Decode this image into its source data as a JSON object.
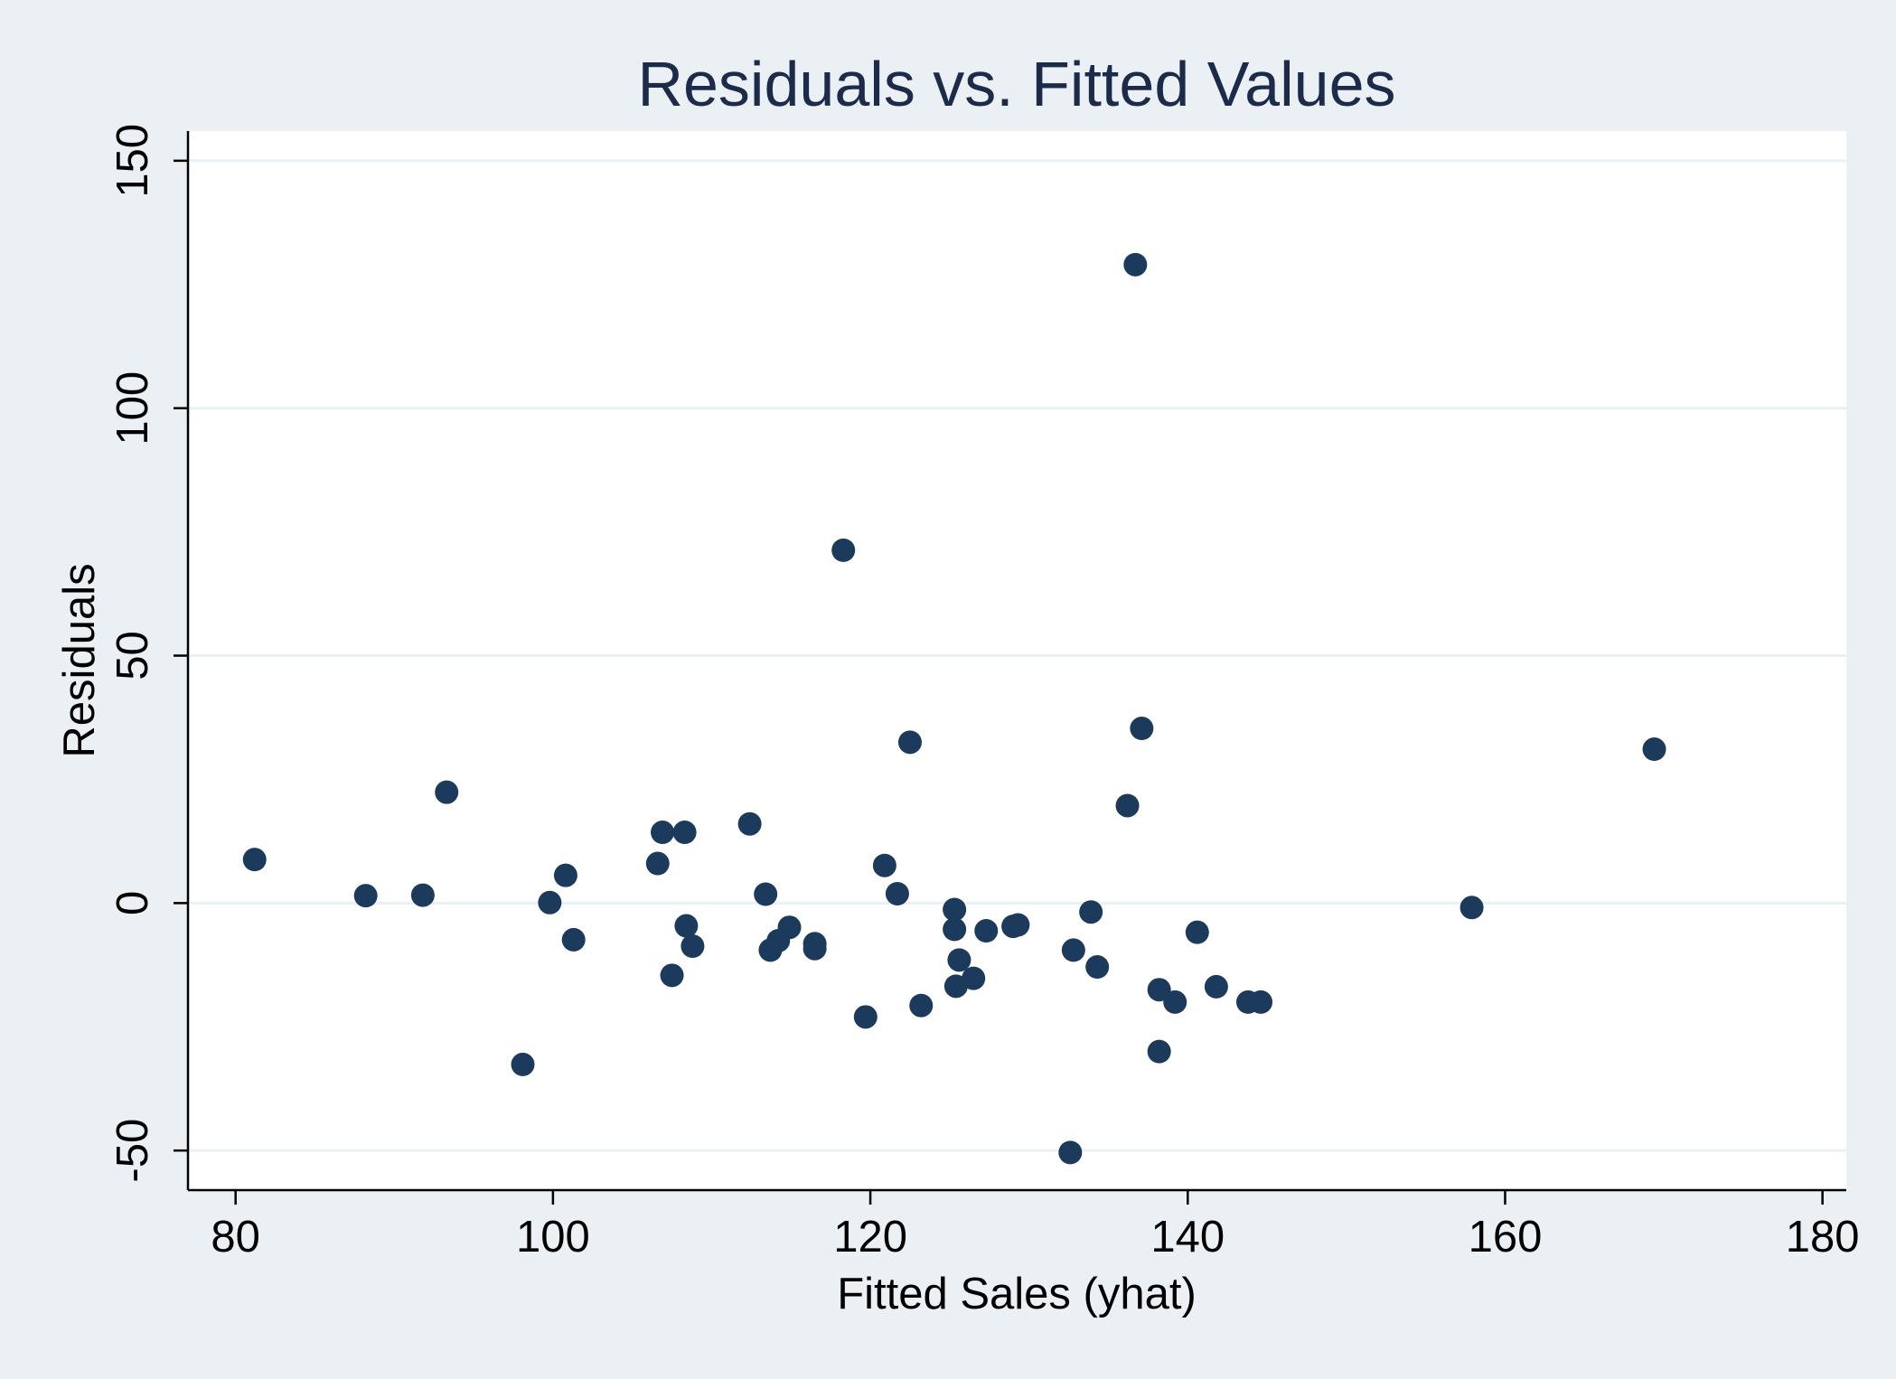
{
  "chart_data": {
    "type": "scatter",
    "title": "Residuals vs. Fitted Values",
    "xlabel": "Fitted Sales (yhat)",
    "ylabel": "Residuals",
    "xlim": [
      77,
      181.5
    ],
    "ylim": [
      -58,
      156
    ],
    "xticks": [
      80,
      100,
      120,
      140,
      160,
      180
    ],
    "yticks": [
      -50,
      0,
      50,
      100,
      150
    ],
    "grid": "horizontal",
    "colors": {
      "page_background": "#eaf0f3",
      "plot_background": "#ffffff",
      "marker": "#1b3a5c",
      "title": "#1c2b4a",
      "gridline": "#eaf0f3",
      "axis": "#000000"
    },
    "series": [
      {
        "points": [
          {
            "x": 81.2,
            "y": 8.8
          },
          {
            "x": 88.2,
            "y": 1.5
          },
          {
            "x": 91.8,
            "y": 1.6
          },
          {
            "x": 93.3,
            "y": 22.4
          },
          {
            "x": 98.1,
            "y": -32.6
          },
          {
            "x": 99.8,
            "y": 0.1
          },
          {
            "x": 100.8,
            "y": 5.6
          },
          {
            "x": 101.3,
            "y": -7.4
          },
          {
            "x": 106.6,
            "y": 8.0
          },
          {
            "x": 106.9,
            "y": 14.3
          },
          {
            "x": 107.5,
            "y": -14.6
          },
          {
            "x": 108.3,
            "y": 14.3
          },
          {
            "x": 108.4,
            "y": -4.6
          },
          {
            "x": 108.8,
            "y": -8.7
          },
          {
            "x": 112.4,
            "y": 16.0
          },
          {
            "x": 113.4,
            "y": 1.8
          },
          {
            "x": 113.7,
            "y": -9.5
          },
          {
            "x": 114.2,
            "y": -7.6
          },
          {
            "x": 114.9,
            "y": -4.9
          },
          {
            "x": 116.5,
            "y": -8.2
          },
          {
            "x": 116.5,
            "y": -9.2
          },
          {
            "x": 118.3,
            "y": 71.3
          },
          {
            "x": 119.7,
            "y": -23.0
          },
          {
            "x": 120.9,
            "y": 7.6
          },
          {
            "x": 121.7,
            "y": 1.9
          },
          {
            "x": 122.5,
            "y": 32.5
          },
          {
            "x": 123.2,
            "y": -20.7
          },
          {
            "x": 125.3,
            "y": -1.3
          },
          {
            "x": 125.3,
            "y": -5.3
          },
          {
            "x": 125.4,
            "y": -16.8
          },
          {
            "x": 125.6,
            "y": -11.5
          },
          {
            "x": 126.5,
            "y": -15.2
          },
          {
            "x": 127.3,
            "y": -5.6
          },
          {
            "x": 129.0,
            "y": -4.7
          },
          {
            "x": 129.3,
            "y": -4.4
          },
          {
            "x": 132.6,
            "y": -50.4
          },
          {
            "x": 132.8,
            "y": -9.5
          },
          {
            "x": 133.9,
            "y": -1.8
          },
          {
            "x": 134.3,
            "y": -12.9
          },
          {
            "x": 136.2,
            "y": 19.7
          },
          {
            "x": 136.7,
            "y": 129.0
          },
          {
            "x": 137.1,
            "y": 35.3
          },
          {
            "x": 138.2,
            "y": -17.5
          },
          {
            "x": 138.2,
            "y": -30.0
          },
          {
            "x": 139.2,
            "y": -20.0
          },
          {
            "x": 140.6,
            "y": -5.9
          },
          {
            "x": 141.8,
            "y": -16.9
          },
          {
            "x": 143.8,
            "y": -20.0
          },
          {
            "x": 144.6,
            "y": -20.0
          },
          {
            "x": 157.9,
            "y": -0.9
          },
          {
            "x": 169.4,
            "y": 31.1
          }
        ]
      }
    ]
  }
}
